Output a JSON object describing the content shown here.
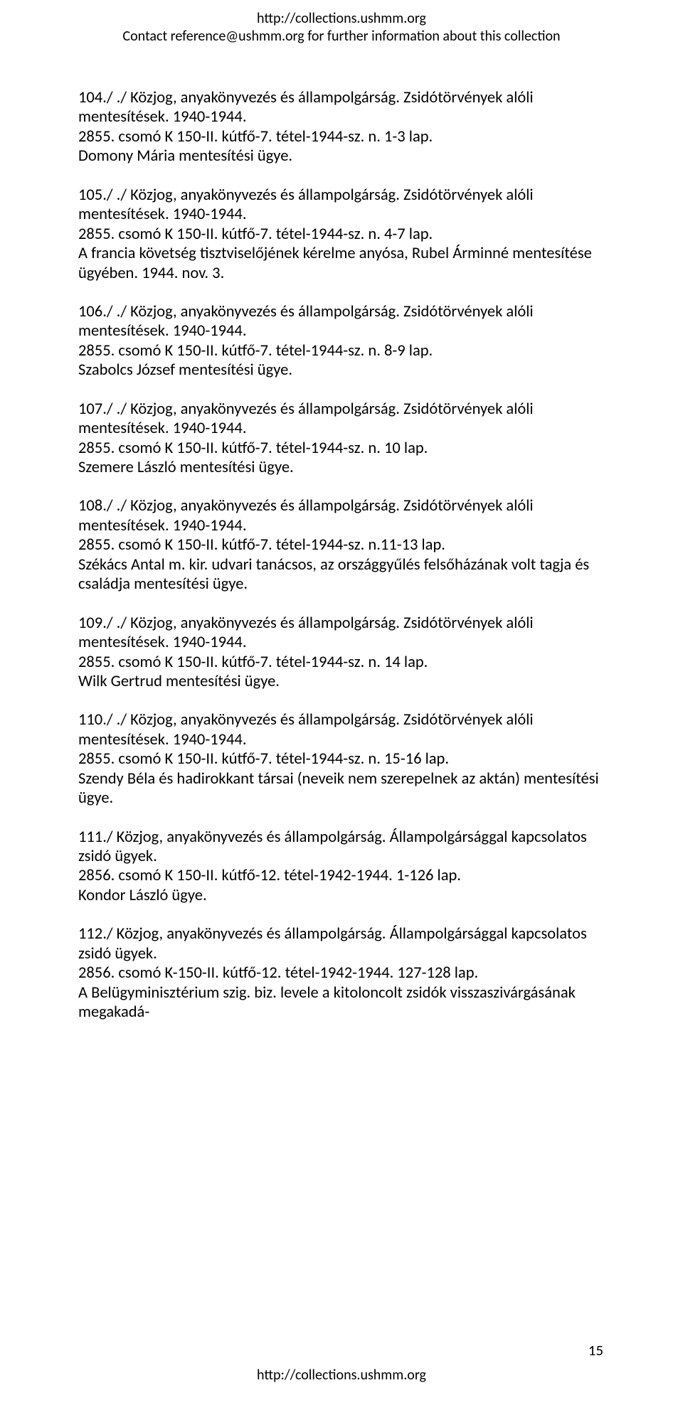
{
  "header": {
    "line1": "http://collections.ushmm.org",
    "line2": "Contact reference@ushmm.org for further information about this collection"
  },
  "entries": [
    {
      "l1": "104./ ./ Közjog, anyakönyvezés és állampolgárság. Zsidótörvények alóli mentesítések. 1940-1944.",
      "l2": "2855. csomó K 150-II. kútfő-7. tétel-1944-sz. n. 1-3 lap.",
      "l3": "Domony Mária mentesítési ügye."
    },
    {
      "l1": "105./ ./ Közjog, anyakönyvezés és állampolgárság. Zsidótörvények alóli mentesítések. 1940-1944.",
      "l2": "2855. csomó K 150-II. kútfő-7. tétel-1944-sz. n. 4-7 lap.",
      "l3": "A francia követség tisztviselőjének kérelme anyósa, Rubel Árminné mentesítése ügyében. 1944. nov. 3."
    },
    {
      "l1": "106./ ./ Közjog, anyakönyvezés és állampolgárság. Zsidótörvények alóli mentesítések. 1940-1944.",
      "l2": "2855. csomó K 150-II. kútfő-7. tétel-1944-sz. n. 8-9 lap.",
      "l3": "Szabolcs József mentesítési ügye."
    },
    {
      "l1": "107./ ./ Közjog, anyakönyvezés és állampolgárság. Zsidótörvények alóli mentesítések. 1940-1944.",
      "l2": "2855. csomó K 150-II. kútfő-7. tétel-1944-sz. n. 10 lap.",
      "l3": "Szemere László mentesítési ügye."
    },
    {
      "l1": "108./ ./ Közjog, anyakönyvezés és állampolgárság. Zsidótörvények alóli mentesítések. 1940-1944.",
      "l2": "2855. csomó K 150-II. kútfő-7. tétel-1944-sz. n.11-13 lap.",
      "l3": "Székács Antal m. kir. udvari tanácsos, az országgyűlés felsőházának volt tagja és családja mentesítési ügye."
    },
    {
      "l1": "109./ ./ Közjog, anyakönyvezés és állampolgárság. Zsidótörvények alóli mentesítések. 1940-1944.",
      "l2": "2855. csomó K 150-II. kútfő-7. tétel-1944-sz. n. 14 lap.",
      "l3": "Wilk Gertrud mentesítési ügye."
    },
    {
      "l1": "110./ ./ Közjog, anyakönyvezés és állampolgárság. Zsidótörvények alóli mentesítések. 1940-1944.",
      "l2": "2855. csomó K 150-II. kútfő-7. tétel-1944-sz. n. 15-16 lap.",
      "l3": "Szendy Béla és hadirokkant társai (neveik nem szerepelnek az aktán) mentesítési ügye."
    },
    {
      "l1": "111./ Közjog, anyakönyvezés és állampolgárság. Állampolgársággal kapcsolatos zsidó ügyek.",
      "l2": "2856. csomó K 150-II. kútfő-12. tétel-1942-1944. 1-126 lap.",
      "l3": "Kondor László ügye."
    },
    {
      "l1": "112./ Közjog, anyakönyvezés és állampolgárság. Állampolgársággal kapcsolatos zsidó ügyek.",
      "l2": "2856. csomó K-150-II. kútfő-12. tétel-1942-1944. 127-128 lap.",
      "l3": "A Belügyminisztérium szig. biz. levele a kitoloncolt zsidók visszaszivárgásának megakadá-"
    }
  ],
  "footer": {
    "url": "http://collections.ushmm.org",
    "page": "15"
  }
}
